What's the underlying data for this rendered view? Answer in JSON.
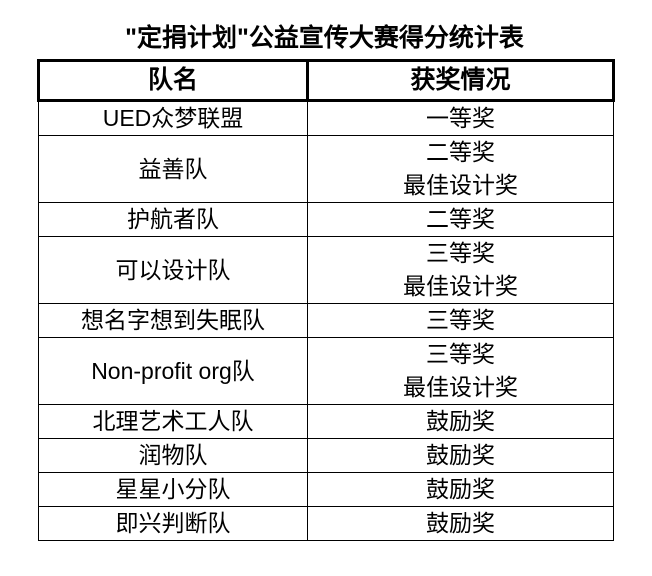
{
  "page": {
    "background": "#ffffff",
    "text_color": "#000000",
    "border_color": "#000000"
  },
  "title": "\"定捐计划\"公益宣传大赛得分统计表",
  "table": {
    "headers": [
      "队名",
      "获奖情况"
    ],
    "rows": [
      {
        "team": "UED众梦联盟",
        "awards": [
          "一等奖"
        ]
      },
      {
        "team": "益善队",
        "awards": [
          "二等奖",
          "最佳设计奖"
        ]
      },
      {
        "team": "护航者队",
        "awards": [
          "二等奖"
        ]
      },
      {
        "team": "可以设计队",
        "awards": [
          "三等奖",
          "最佳设计奖"
        ]
      },
      {
        "team": "想名字想到失眠队",
        "awards": [
          "三等奖"
        ]
      },
      {
        "team": "Non-profit org队",
        "awards": [
          "三等奖",
          "最佳设计奖"
        ]
      },
      {
        "team": "北理艺术工人队",
        "awards": [
          "鼓励奖"
        ]
      },
      {
        "team": "润物队",
        "awards": [
          "鼓励奖"
        ]
      },
      {
        "team": "星星小分队",
        "awards": [
          "鼓励奖"
        ]
      },
      {
        "team": "即兴判断队",
        "awards": [
          "鼓励奖"
        ]
      }
    ]
  },
  "chart_data": {
    "type": "table",
    "title": "\"定捐计划\"公益宣传大赛得分统计表",
    "columns": [
      "队名",
      "获奖情况"
    ],
    "rows": [
      [
        "UED众梦联盟",
        "一等奖"
      ],
      [
        "益善队",
        "二等奖 / 最佳设计奖"
      ],
      [
        "护航者队",
        "二等奖"
      ],
      [
        "可以设计队",
        "三等奖 / 最佳设计奖"
      ],
      [
        "想名字想到失眠队",
        "三等奖"
      ],
      [
        "Non-profit org队",
        "三等奖 / 最佳设计奖"
      ],
      [
        "北理艺术工人队",
        "鼓励奖"
      ],
      [
        "润物队",
        "鼓励奖"
      ],
      [
        "星星小分队",
        "鼓励奖"
      ],
      [
        "即兴判断队",
        "鼓励奖"
      ]
    ]
  }
}
